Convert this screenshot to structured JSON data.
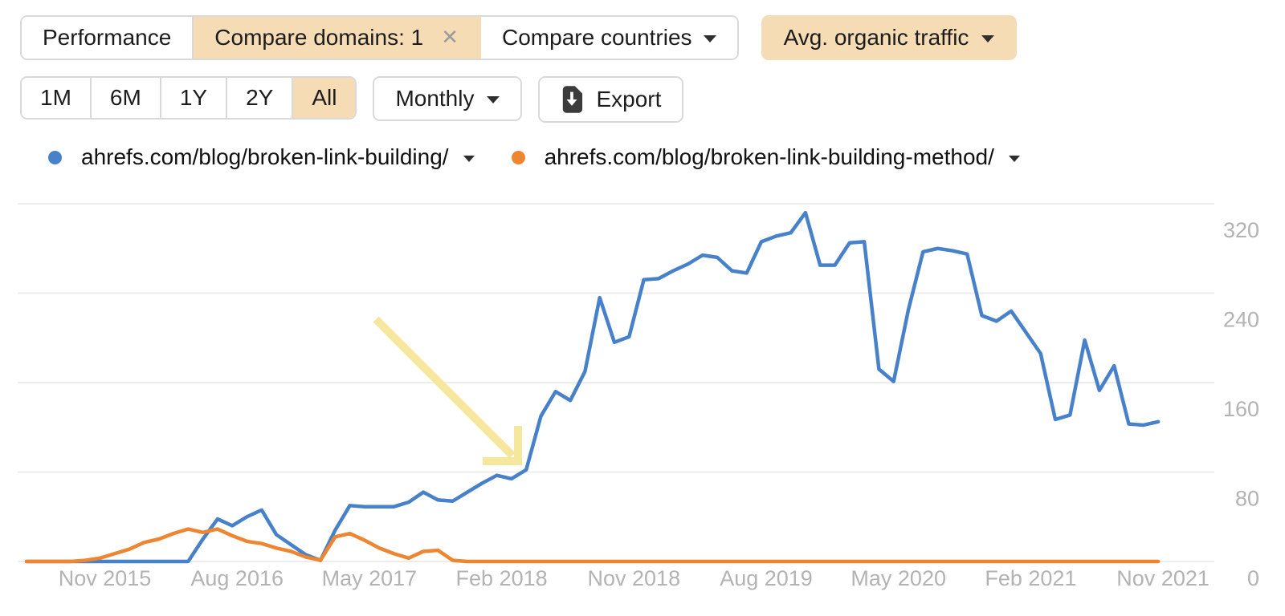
{
  "toolbar": {
    "performance": "Performance",
    "compare_domains": "Compare domains: 1",
    "compare_domains_close": "✕",
    "compare_countries": "Compare countries",
    "metric_selector": "Avg. organic traffic"
  },
  "controls": {
    "ranges": [
      "1M",
      "6M",
      "1Y",
      "2Y",
      "All"
    ],
    "active_range": "All",
    "granularity": "Monthly",
    "export_label": "Export"
  },
  "legend": [
    {
      "label": "ahrefs.com/blog/broken-link-building/",
      "color": "#4781c9"
    },
    {
      "label": "ahrefs.com/blog/broken-link-building-method/",
      "color": "#ee8531"
    }
  ],
  "colors": {
    "accent_tan": "#f6dcb4",
    "blue": "#4781c9",
    "orange": "#ee8531",
    "grid": "#ececec",
    "axis_text": "#b3b3b3",
    "arrow": "#f5e79e",
    "button_border": "#d9d9d9",
    "text": "#1c1c1c"
  },
  "chart_data": {
    "type": "line",
    "title": "Avg. organic traffic",
    "x_range": {
      "start": "Jun 2015",
      "end": "Nov 2021",
      "step": "month"
    },
    "x_tick_indices": [
      5,
      14,
      23,
      32,
      41,
      50,
      59,
      68,
      77
    ],
    "x_tick_labels": [
      "Nov 2015",
      "Aug 2016",
      "May 2017",
      "Feb 2018",
      "Nov 2018",
      "Aug 2019",
      "May 2020",
      "Feb 2021",
      "Nov 2021"
    ],
    "y_ticks": [
      0,
      80,
      160,
      240,
      320
    ],
    "ylim": [
      0,
      330
    ],
    "y_axis_side": "right",
    "grid": "horizontal",
    "legend_position": "top-left",
    "series": [
      {
        "name": "ahrefs.com/blog/broken-link-building/",
        "color": "#4781c9",
        "values": [
          0,
          0,
          0,
          0,
          0,
          0,
          0,
          0,
          0,
          0,
          0,
          0,
          20,
          38,
          32,
          40,
          46,
          24,
          15,
          6,
          1,
          28,
          50,
          49,
          49,
          49,
          53,
          62,
          55,
          54,
          62,
          70,
          77,
          74,
          82,
          130,
          152,
          144,
          170,
          236,
          196,
          201,
          252,
          253,
          260,
          266,
          274,
          272,
          260,
          258,
          286,
          291,
          294,
          312,
          265,
          265,
          285,
          286,
          172,
          161,
          225,
          277,
          280,
          278,
          275,
          220,
          215,
          224,
          205,
          186,
          127,
          131,
          198,
          153,
          175,
          123,
          122,
          125
        ]
      },
      {
        "name": "ahrefs.com/blog/broken-link-building-method/",
        "color": "#ee8531",
        "values": [
          0,
          0,
          0,
          0,
          1,
          3,
          7,
          11,
          17,
          20,
          25,
          29,
          26,
          29,
          23,
          18,
          16,
          12,
          9,
          4,
          1,
          22,
          25,
          19,
          12,
          7,
          3,
          9,
          10,
          1,
          0,
          0,
          0,
          0,
          0,
          0,
          0,
          0,
          0,
          0,
          0,
          0,
          0,
          0,
          0,
          0,
          0,
          0,
          0,
          0,
          0,
          0,
          0,
          0,
          0,
          0,
          0,
          0,
          0,
          0,
          0,
          0,
          0,
          0,
          0,
          0,
          0,
          0,
          0,
          0,
          0,
          0,
          0,
          0,
          0,
          0,
          0,
          0
        ]
      }
    ],
    "annotation": {
      "shape": "arrow",
      "color": "#f5e79e",
      "shaft": [
        [
          468,
          398
        ],
        [
          638,
          568
        ]
      ],
      "head": [
        [
          601,
          575
        ],
        [
          645,
          575
        ],
        [
          645,
          531
        ]
      ],
      "points_at": "Feb 2018 start of traffic climb"
    }
  }
}
